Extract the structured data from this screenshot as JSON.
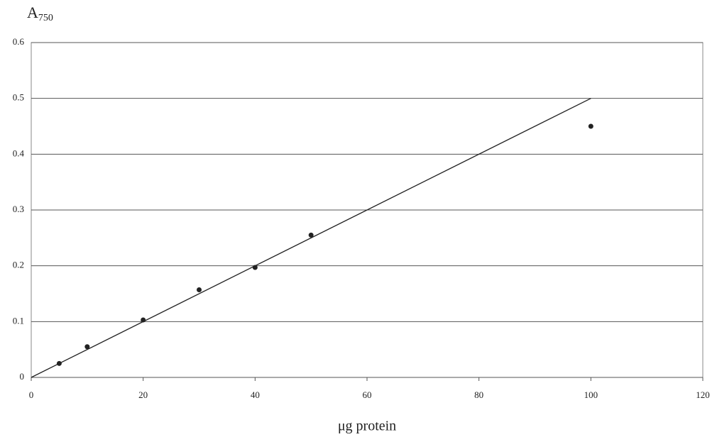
{
  "chart_data": {
    "type": "scatter",
    "ylabel": {
      "main": "A",
      "sub": "750"
    },
    "xlabel": "μg protein",
    "x": [
      5,
      10,
      20,
      30,
      40,
      50,
      100
    ],
    "values": [
      0.025,
      0.055,
      0.103,
      0.157,
      0.197,
      0.255,
      0.45
    ],
    "color": "#222222",
    "trendline": {
      "x": [
        0,
        100
      ],
      "values": [
        0,
        0.5
      ],
      "color": "#222222"
    },
    "xlim": [
      0,
      120
    ],
    "xticks": [
      0,
      20,
      40,
      60,
      80,
      100,
      120
    ],
    "ylim": [
      0,
      0.6
    ],
    "yticks": [
      0,
      0.1,
      0.2,
      0.3,
      0.4,
      0.5,
      0.6
    ],
    "grid": true
  }
}
